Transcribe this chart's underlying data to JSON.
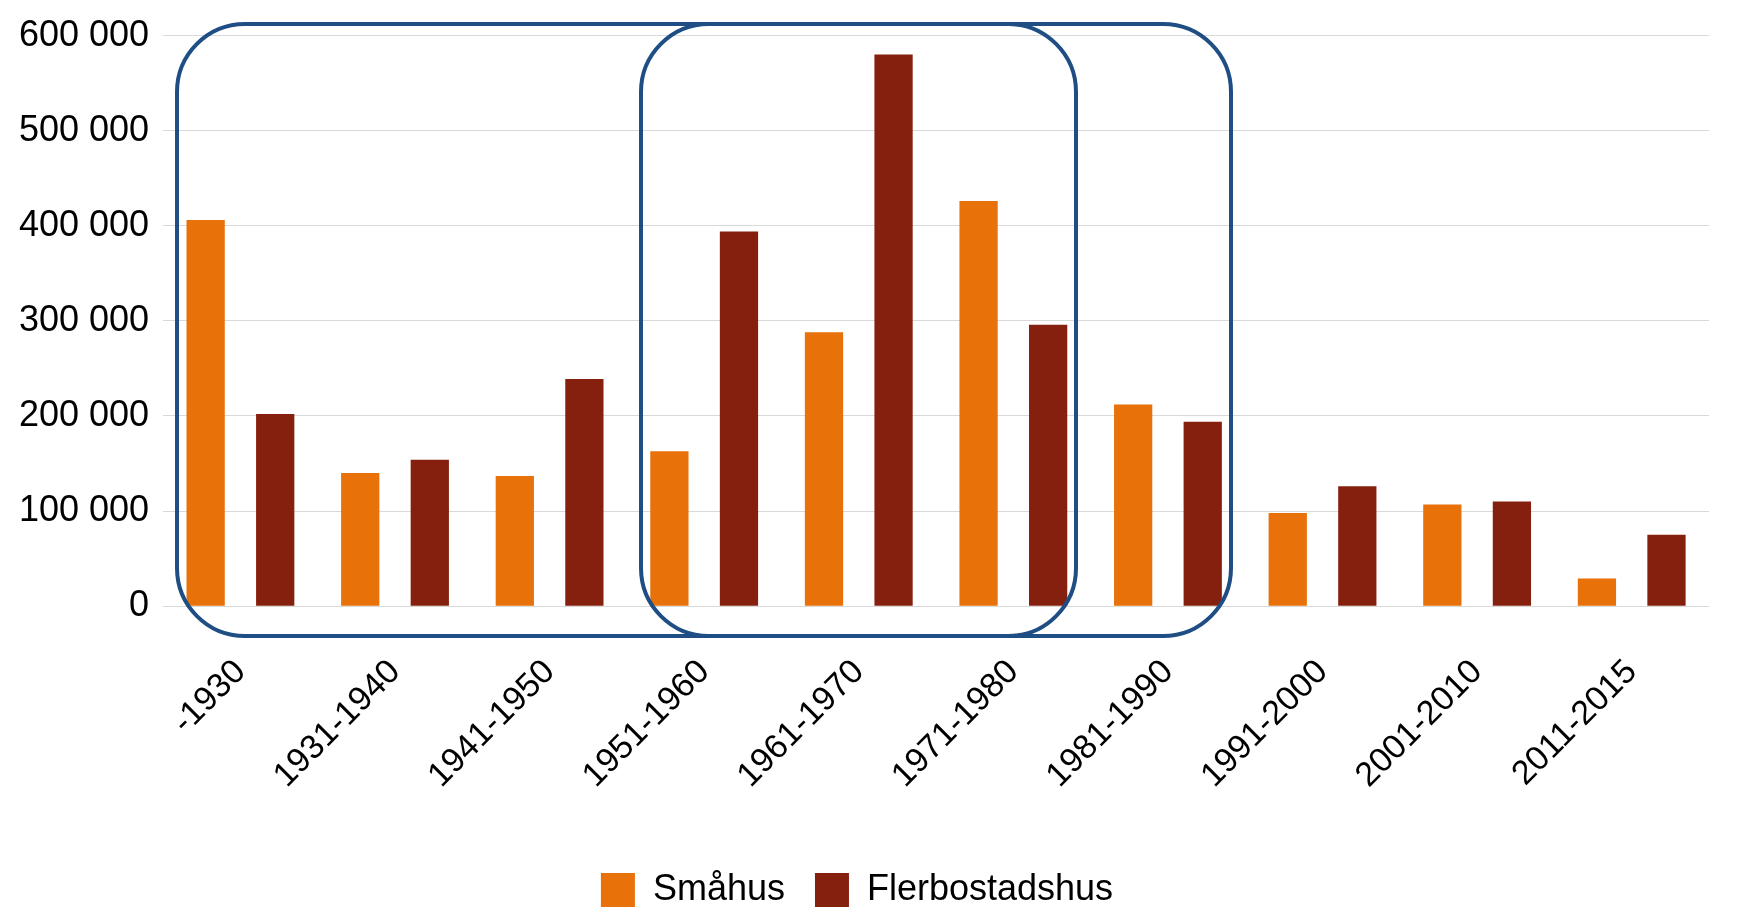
{
  "chart_data": {
    "type": "bar",
    "categories": [
      "-1930",
      "1931-1940",
      "1941-1950",
      "1951-1960",
      "1961-1970",
      "1971-1980",
      "1981-1990",
      "1991-2000",
      "2001-2010",
      "2011-2015"
    ],
    "series": [
      {
        "name": "Småhus",
        "color": "#e8710a",
        "values": [
          406000,
          140000,
          137000,
          163000,
          288000,
          426000,
          212000,
          98000,
          107000,
          29000
        ]
      },
      {
        "name": "Flerbostadshus",
        "color": "#86200e",
        "values": [
          202000,
          154000,
          239000,
          394000,
          580000,
          296000,
          194000,
          126000,
          110000,
          75000
        ]
      }
    ],
    "ylim": [
      0,
      600000
    ],
    "yticks": [
      {
        "value": 0,
        "label": "0"
      },
      {
        "value": 100000,
        "label": "100 000"
      },
      {
        "value": 200000,
        "label": "200 000"
      },
      {
        "value": 300000,
        "label": "300 000"
      },
      {
        "value": 400000,
        "label": "400 000"
      },
      {
        "value": 500000,
        "label": "500 000"
      },
      {
        "value": 600000,
        "label": "600 000"
      }
    ],
    "grid": "y",
    "legend": "bottom"
  }
}
